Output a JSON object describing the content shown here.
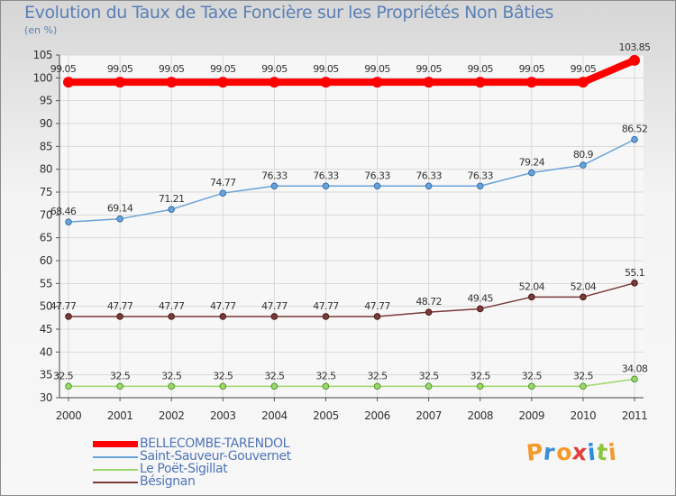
{
  "chart_data": {
    "type": "line",
    "title": "Evolution du Taux de Taxe Foncière sur les Propriétés Non Bâties",
    "ylabel": "(en %)",
    "xlabel": "",
    "x": [
      "2000",
      "2001",
      "2002",
      "2003",
      "2004",
      "2005",
      "2006",
      "2007",
      "2008",
      "2009",
      "2010",
      "2011"
    ],
    "ylim": [
      30,
      105
    ],
    "yticks": [
      30,
      35,
      40,
      45,
      50,
      55,
      60,
      65,
      70,
      75,
      80,
      85,
      90,
      95,
      100,
      105
    ],
    "grid": true,
    "legend_position": "bottom-left",
    "series": [
      {
        "name": "BELLECOMBE-TARENDOL",
        "color": "#ff0000",
        "values": [
          99.05,
          99.05,
          99.05,
          99.05,
          99.05,
          99.05,
          99.05,
          99.05,
          99.05,
          99.05,
          99.05,
          103.85
        ],
        "labels": [
          "99.05",
          "99.05",
          "99.05",
          "99.05",
          "99.05",
          "99.05",
          "99.05",
          "99.05",
          "99.05",
          "99.05",
          "99.05",
          "103.85"
        ]
      },
      {
        "name": "Saint-Sauveur-Gouvernet",
        "color": "#6aa2d8",
        "values": [
          68.46,
          69.14,
          71.21,
          74.77,
          76.33,
          76.33,
          76.33,
          76.33,
          76.33,
          79.24,
          80.9,
          86.52
        ],
        "labels": [
          "68.46",
          "69.14",
          "71.21",
          "74.77",
          "76.33",
          "76.33",
          "76.33",
          "76.33",
          "76.33",
          "79.24",
          "80.9",
          "86.52"
        ]
      },
      {
        "name": "Le Poët-Sigillat",
        "color": "#9dd76a",
        "values": [
          32.5,
          32.5,
          32.5,
          32.5,
          32.5,
          32.5,
          32.5,
          32.5,
          32.5,
          32.5,
          32.5,
          34.08
        ],
        "labels": [
          "32.5",
          "32.5",
          "32.5",
          "32.5",
          "32.5",
          "32.5",
          "32.5",
          "32.5",
          "32.5",
          "32.5",
          "32.5",
          "34.08"
        ]
      },
      {
        "name": "Bésignan",
        "color": "#7a3a3a",
        "values": [
          47.77,
          47.77,
          47.77,
          47.77,
          47.77,
          47.77,
          47.77,
          48.72,
          49.45,
          52.04,
          52.04,
          55.1
        ],
        "labels": [
          "47.77",
          "47.77",
          "47.77",
          "47.77",
          "47.77",
          "47.77",
          "47.77",
          "48.72",
          "49.45",
          "52.04",
          "52.04",
          "55.1"
        ]
      }
    ]
  },
  "logo": {
    "text": "Proxiti",
    "colors": [
      "#f39a2b",
      "#3a8fd6",
      "#f39a2b",
      "#e23e3e",
      "#2c8de0",
      "#8cc63e",
      "#f39a2b"
    ]
  }
}
